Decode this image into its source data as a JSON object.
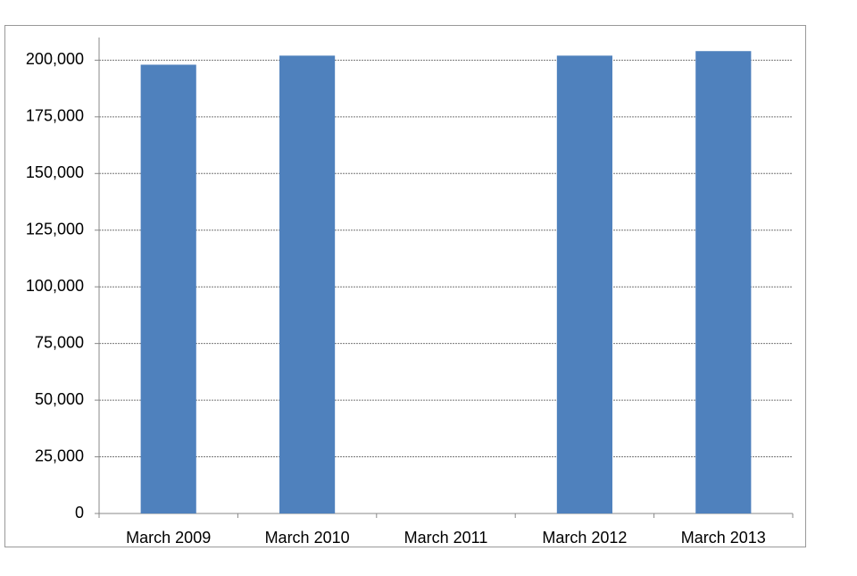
{
  "chart_data": {
    "type": "bar",
    "categories": [
      "March 2009",
      "March 2010",
      "March 2011",
      "March 2012",
      "March 2013"
    ],
    "values": [
      198000,
      202000,
      null,
      202000,
      204000
    ],
    "color": "#4f81bd",
    "ylim": [
      0,
      210000
    ],
    "yticks": [
      0,
      {
        "value": 25000,
        "label": "25,000"
      },
      {
        "value": 50000,
        "label": "50,000"
      },
      {
        "value": 75000,
        "label": "75,000"
      },
      {
        "value": 100000,
        "label": "100,000"
      },
      {
        "value": 125000,
        "label": "125,000"
      },
      {
        "value": 150000,
        "label": "150,000"
      },
      {
        "value": 175000,
        "label": "175,000"
      },
      {
        "value": 200000,
        "label": "200,000"
      }
    ],
    "grid": true
  }
}
